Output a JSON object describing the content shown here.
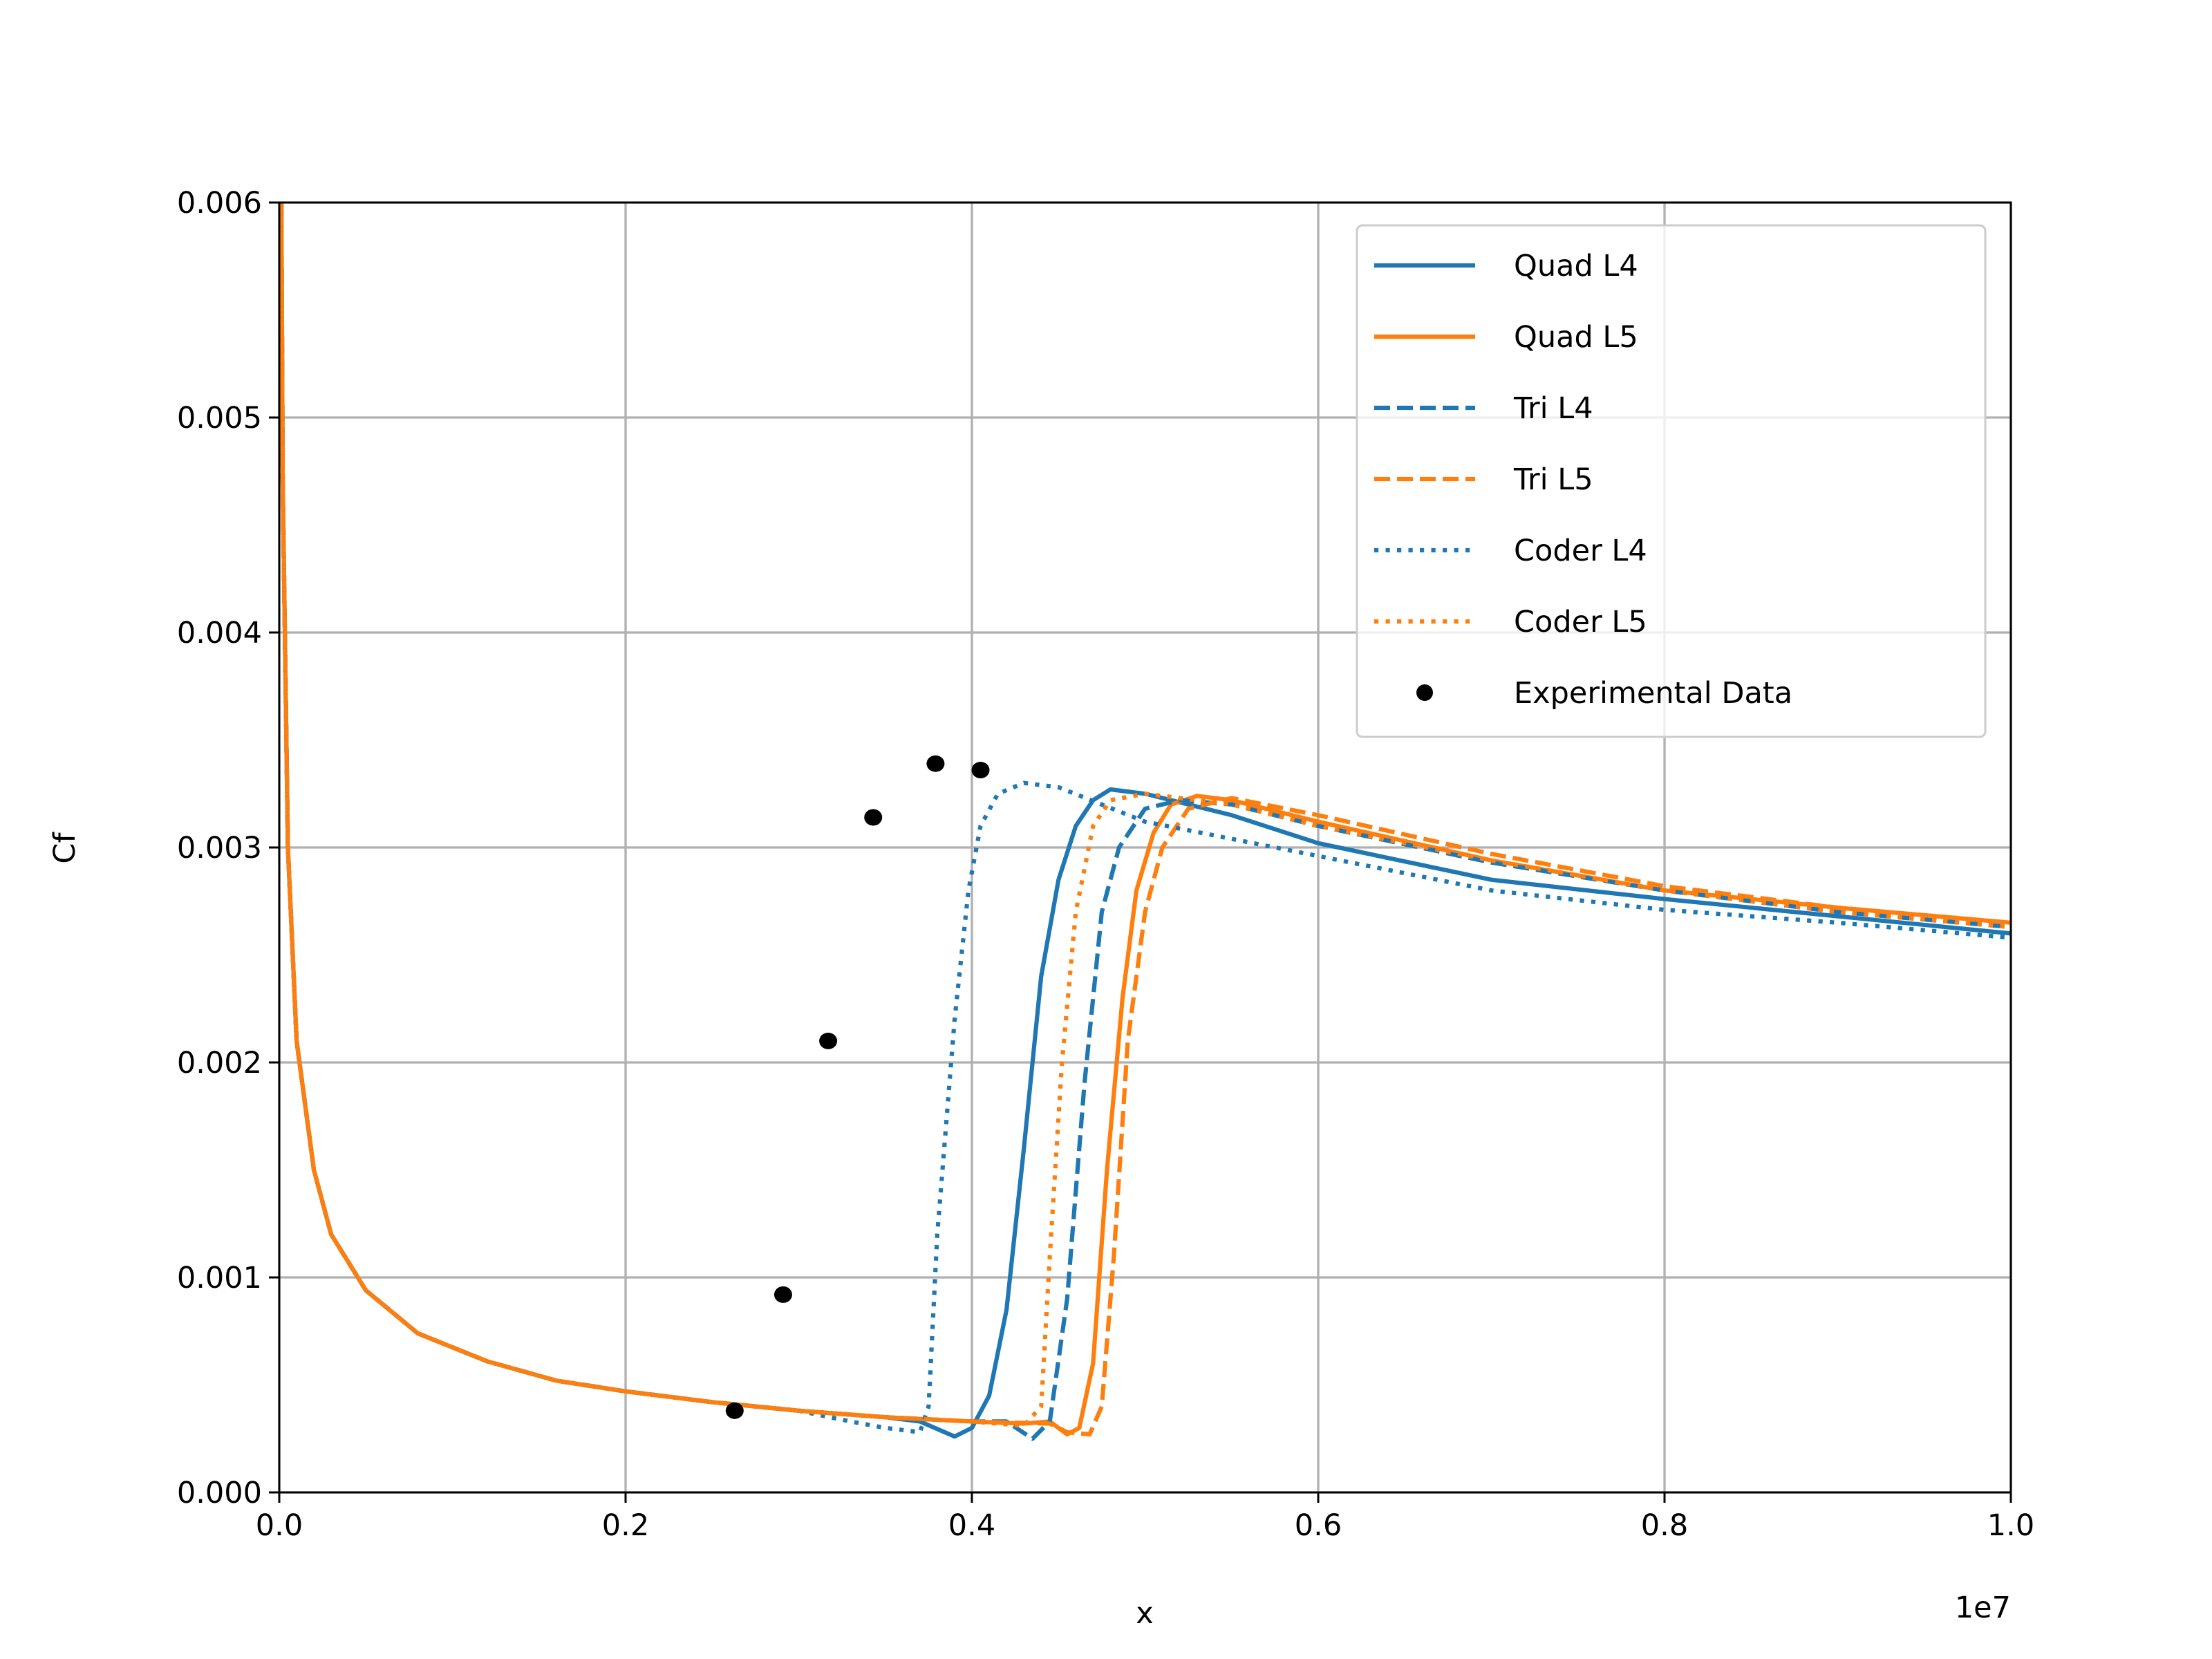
{
  "chart_data": {
    "type": "line",
    "title": "",
    "xlabel": "x",
    "ylabel": "Cf",
    "x_offset_label": "1e7",
    "xlim": [
      0.0,
      1.0
    ],
    "ylim": [
      0.0,
      0.006
    ],
    "grid": true,
    "legend_placement": "top-right",
    "xticks": [
      "0.0",
      "0.2",
      "0.4",
      "0.6",
      "0.8",
      "1.0"
    ],
    "xtick_values": [
      0.0,
      0.2,
      0.4,
      0.6,
      0.8,
      1.0
    ],
    "yticks": [
      "0.000",
      "0.001",
      "0.002",
      "0.003",
      "0.004",
      "0.005",
      "0.006"
    ],
    "ytick_values": [
      0.0,
      0.001,
      0.002,
      0.003,
      0.004,
      0.005,
      0.006
    ],
    "shared_laminar_branch": [
      [
        0.0003,
        0.0075
      ],
      [
        0.002,
        0.0047
      ],
      [
        0.005,
        0.003
      ],
      [
        0.01,
        0.0021
      ],
      [
        0.02,
        0.0015
      ],
      [
        0.03,
        0.0012
      ],
      [
        0.05,
        0.00094
      ],
      [
        0.08,
        0.00074
      ],
      [
        0.12,
        0.00061
      ],
      [
        0.16,
        0.00052
      ],
      [
        0.2,
        0.00047
      ],
      [
        0.25,
        0.00042
      ],
      [
        0.3,
        0.00038
      ]
    ],
    "series": [
      {
        "name": "Quad L4",
        "color": "#1f77b4",
        "style": "solid",
        "points": [
          [
            0.35,
            0.00035
          ],
          [
            0.37,
            0.00033
          ],
          [
            0.39,
            0.00026
          ],
          [
            0.4,
            0.0003
          ],
          [
            0.41,
            0.00045
          ],
          [
            0.42,
            0.00085
          ],
          [
            0.43,
            0.0016
          ],
          [
            0.44,
            0.0024
          ],
          [
            0.45,
            0.00285
          ],
          [
            0.46,
            0.0031
          ],
          [
            0.47,
            0.00322
          ],
          [
            0.48,
            0.00327
          ],
          [
            0.5,
            0.00325
          ],
          [
            0.55,
            0.00315
          ],
          [
            0.6,
            0.00302
          ],
          [
            0.7,
            0.00285
          ],
          [
            0.8,
            0.00276
          ],
          [
            0.9,
            0.00268
          ],
          [
            1.0,
            0.0026
          ]
        ]
      },
      {
        "name": "Quad L5",
        "color": "#ff7f0e",
        "style": "solid",
        "points": [
          [
            0.35,
            0.00035
          ],
          [
            0.4,
            0.00033
          ],
          [
            0.43,
            0.00032
          ],
          [
            0.445,
            0.00033
          ],
          [
            0.455,
            0.00027
          ],
          [
            0.462,
            0.0003
          ],
          [
            0.47,
            0.0006
          ],
          [
            0.478,
            0.0015
          ],
          [
            0.487,
            0.0023
          ],
          [
            0.495,
            0.0028
          ],
          [
            0.505,
            0.00307
          ],
          [
            0.515,
            0.0032
          ],
          [
            0.53,
            0.00324
          ],
          [
            0.55,
            0.00322
          ],
          [
            0.6,
            0.00312
          ],
          [
            0.7,
            0.00294
          ],
          [
            0.8,
            0.0028
          ],
          [
            0.9,
            0.00272
          ],
          [
            1.0,
            0.00265
          ]
        ]
      },
      {
        "name": "Tri L4",
        "color": "#1f77b4",
        "style": "dashed",
        "points": [
          [
            0.35,
            0.00035
          ],
          [
            0.4,
            0.00033
          ],
          [
            0.42,
            0.00033
          ],
          [
            0.435,
            0.00025
          ],
          [
            0.445,
            0.00033
          ],
          [
            0.455,
            0.0009
          ],
          [
            0.465,
            0.0019
          ],
          [
            0.475,
            0.0027
          ],
          [
            0.485,
            0.003
          ],
          [
            0.5,
            0.00318
          ],
          [
            0.52,
            0.00322
          ],
          [
            0.55,
            0.0032
          ],
          [
            0.6,
            0.0031
          ],
          [
            0.7,
            0.00293
          ],
          [
            0.8,
            0.0028
          ],
          [
            0.9,
            0.0027
          ],
          [
            1.0,
            0.00263
          ]
        ]
      },
      {
        "name": "Tri L5",
        "color": "#ff7f0e",
        "style": "dashed",
        "points": [
          [
            0.35,
            0.00035
          ],
          [
            0.4,
            0.00033
          ],
          [
            0.445,
            0.00032
          ],
          [
            0.455,
            0.00028
          ],
          [
            0.468,
            0.00027
          ],
          [
            0.475,
            0.0004
          ],
          [
            0.482,
            0.0011
          ],
          [
            0.49,
            0.0021
          ],
          [
            0.5,
            0.0027
          ],
          [
            0.51,
            0.003
          ],
          [
            0.525,
            0.00318
          ],
          [
            0.55,
            0.00323
          ],
          [
            0.6,
            0.00315
          ],
          [
            0.7,
            0.00297
          ],
          [
            0.8,
            0.00282
          ],
          [
            0.9,
            0.00272
          ],
          [
            1.0,
            0.00265
          ]
        ]
      },
      {
        "name": "Coder L4",
        "color": "#1f77b4",
        "style": "dotted",
        "points": [
          [
            0.33,
            0.00033
          ],
          [
            0.35,
            0.0003
          ],
          [
            0.37,
            0.00028
          ],
          [
            0.375,
            0.0004
          ],
          [
            0.38,
            0.0012
          ],
          [
            0.39,
            0.0022
          ],
          [
            0.398,
            0.0028
          ],
          [
            0.405,
            0.0031
          ],
          [
            0.415,
            0.00325
          ],
          [
            0.43,
            0.0033
          ],
          [
            0.45,
            0.00328
          ],
          [
            0.5,
            0.00312
          ],
          [
            0.6,
            0.00296
          ],
          [
            0.7,
            0.0028
          ],
          [
            0.8,
            0.00271
          ],
          [
            0.9,
            0.00265
          ],
          [
            1.0,
            0.00258
          ]
        ]
      },
      {
        "name": "Coder L5",
        "color": "#ff7f0e",
        "style": "dotted",
        "points": [
          [
            0.35,
            0.00035
          ],
          [
            0.4,
            0.00033
          ],
          [
            0.43,
            0.00031
          ],
          [
            0.44,
            0.0004
          ],
          [
            0.445,
            0.0011
          ],
          [
            0.452,
            0.002
          ],
          [
            0.46,
            0.0027
          ],
          [
            0.47,
            0.0031
          ],
          [
            0.48,
            0.00322
          ],
          [
            0.5,
            0.00325
          ],
          [
            0.55,
            0.0032
          ],
          [
            0.6,
            0.0031
          ],
          [
            0.7,
            0.00294
          ],
          [
            0.8,
            0.0028
          ],
          [
            0.9,
            0.0027
          ],
          [
            1.0,
            0.00263
          ]
        ]
      }
    ],
    "scatter": {
      "name": "Experimental Data",
      "color": "#000000",
      "points": [
        [
          0.263,
          0.00038
        ],
        [
          0.291,
          0.00092
        ],
        [
          0.317,
          0.0021
        ],
        [
          0.343,
          0.00314
        ],
        [
          0.379,
          0.00339
        ],
        [
          0.405,
          0.00336
        ]
      ]
    }
  }
}
